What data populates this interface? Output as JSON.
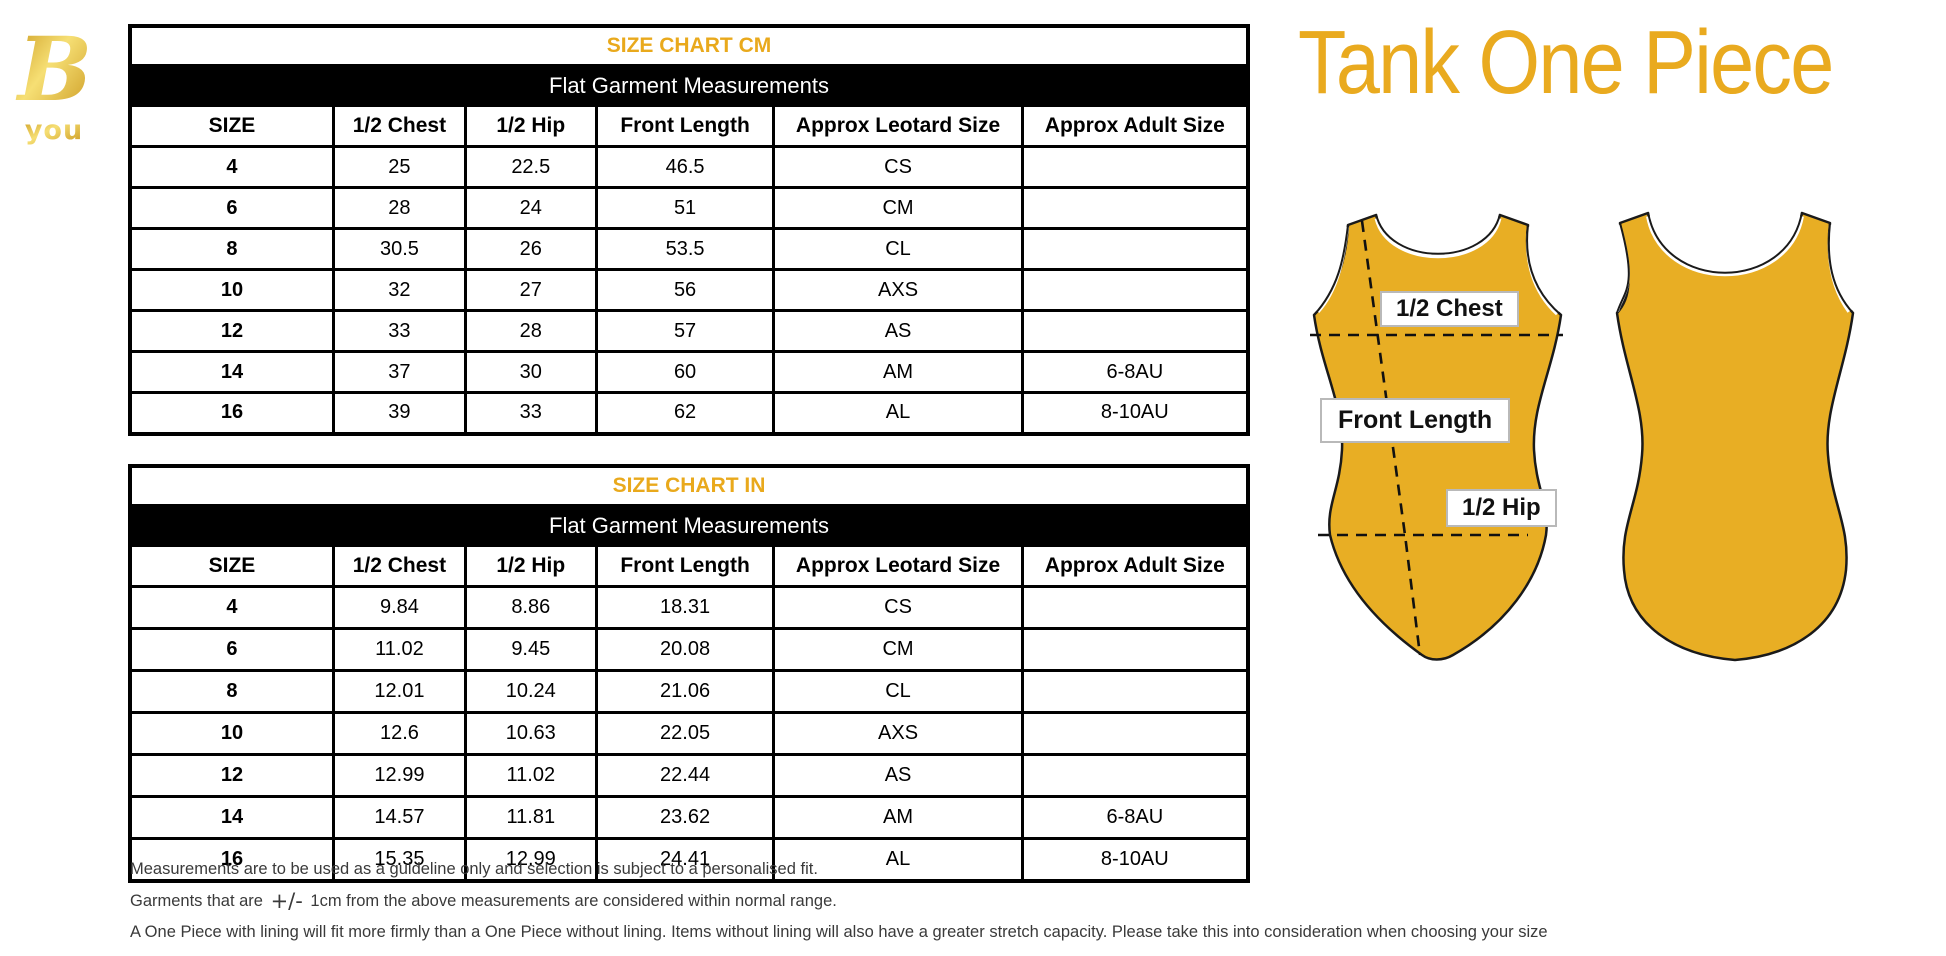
{
  "brand": {
    "logo_letter": "B",
    "logo_word": "you"
  },
  "product_title": "Tank One Piece",
  "colors": {
    "accent_gold": "#E9AA1F",
    "leotard_gold": "#E8AE24",
    "band_black": "#000000",
    "footnote_text": "#3A3A3A"
  },
  "tables": [
    {
      "title": "SIZE CHART CM",
      "subtitle": "Flat Garment Measurements",
      "columns": [
        "SIZE",
        "1/2 Chest",
        "1/2 Hip",
        "Front Length",
        "Approx Leotard Size",
        "Approx Adult Size"
      ],
      "rows": [
        [
          "4",
          "25",
          "22.5",
          "46.5",
          "CS",
          ""
        ],
        [
          "6",
          "28",
          "24",
          "51",
          "CM",
          ""
        ],
        [
          "8",
          "30.5",
          "26",
          "53.5",
          "CL",
          ""
        ],
        [
          "10",
          "32",
          "27",
          "56",
          "AXS",
          ""
        ],
        [
          "12",
          "33",
          "28",
          "57",
          "AS",
          ""
        ],
        [
          "14",
          "37",
          "30",
          "60",
          "AM",
          "6-8AU"
        ],
        [
          "16",
          "39",
          "33",
          "62",
          "AL",
          "8-10AU"
        ]
      ]
    },
    {
      "title": "SIZE CHART IN",
      "subtitle": "Flat Garment Measurements",
      "columns": [
        "SIZE",
        "1/2 Chest",
        "1/2 Hip",
        "Front Length",
        "Approx Leotard Size",
        "Approx Adult Size"
      ],
      "rows": [
        [
          "4",
          "9.84",
          "8.86",
          "18.31",
          "CS",
          ""
        ],
        [
          "6",
          "11.02",
          "9.45",
          "20.08",
          "CM",
          ""
        ],
        [
          "8",
          "12.01",
          "10.24",
          "21.06",
          "CL",
          ""
        ],
        [
          "10",
          "12.6",
          "10.63",
          "22.05",
          "AXS",
          ""
        ],
        [
          "12",
          "12.99",
          "11.02",
          "22.44",
          "AS",
          ""
        ],
        [
          "14",
          "14.57",
          "11.81",
          "23.62",
          "AM",
          "6-8AU"
        ],
        [
          "16",
          "15.35",
          "12.99",
          "24.41",
          "AL",
          "8-10AU"
        ]
      ]
    }
  ],
  "diagram": {
    "chest_label": "1/2 Chest",
    "front_length_label": "Front Length",
    "hip_label": "1/2 Hip"
  },
  "footnotes": {
    "line1": "Measurements are to be used as a guideline only and selection is subject to a personalised fit.",
    "line2_prefix": "Garments that are",
    "line2_symbol": "+/-",
    "line2_suffix": "1cm from the above measurements are considered within normal range.",
    "line3": "A One Piece with lining will fit more firmly than a One Piece without lining.  Items without lining will also have a greater stretch capacity. Please take this into consideration when choosing your size"
  }
}
